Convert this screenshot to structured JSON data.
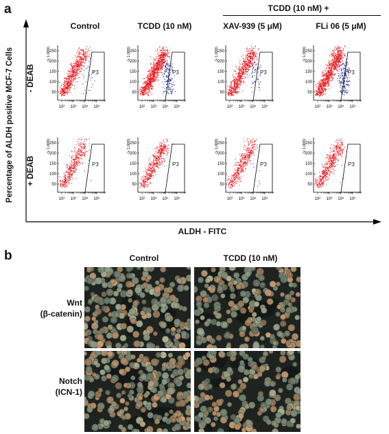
{
  "panel_a": {
    "label": "a",
    "group_header": "TCDD (10 nM) +",
    "columns": [
      "Control",
      "TCDD (10 nM)",
      "XAV-939 (5 μM)",
      "FLi 06 (5 μM)"
    ],
    "rows": [
      "- DEAB",
      "+ DEAB"
    ],
    "y_axis_label": "Percentage of ALDH positive MCF-7 Cells",
    "x_axis_label": "ALDH - FITC",
    "plot": {
      "gate_label": "P3",
      "y_scale_label": "(x 1,000)",
      "y_ticks": [
        "50",
        "100",
        "150",
        "200",
        "250"
      ],
      "x_ticks": [
        "10²",
        "10³",
        "10⁴",
        "10⁵"
      ]
    },
    "colors": {
      "population": "#e8131a",
      "gated": "#1d2a8a",
      "axis": "#000000"
    }
  },
  "panel_b": {
    "label": "b",
    "columns": [
      "Control",
      "TCDD (10 nM)"
    ],
    "rows": [
      {
        "line1": "Wnt",
        "line2": "(β-catenin)"
      },
      {
        "line1": "Notch",
        "line2": "(ICN-1)"
      }
    ]
  }
}
